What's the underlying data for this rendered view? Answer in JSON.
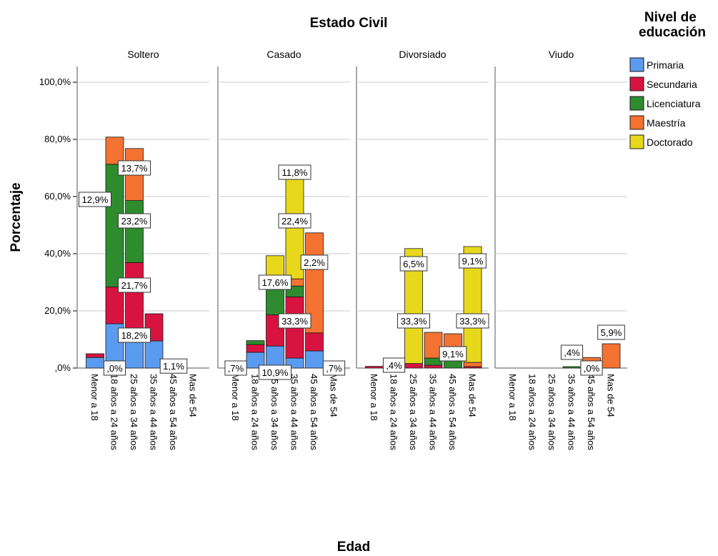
{
  "chart_data": {
    "type": "bar",
    "stacked": true,
    "panel_title": "Estado Civil",
    "xlabel": "Edad",
    "ylabel": "Porcentaje",
    "y_ticks": [
      ",0%",
      "20,0%",
      "40,0%",
      "60,0%",
      "80,0%",
      "100,0%"
    ],
    "ylim": [
      0,
      100
    ],
    "grid": true,
    "legend_title": "Nivel de educación",
    "legend_placement": "right",
    "categories": [
      "Menor a 18",
      "18 años a 24 años",
      "25 años a 34 años",
      "35 años a 44 años",
      "45 años a 54 años",
      "Mas de 54"
    ],
    "series": [
      {
        "name": "Primaria",
        "color": "#5b9bef"
      },
      {
        "name": "Secundaria",
        "color": "#d8133f"
      },
      {
        "name": "Licenciatura",
        "color": "#2e8b2e"
      },
      {
        "name": "Maestría",
        "color": "#f47232"
      },
      {
        "name": "Doctorado",
        "color": "#e8d81c"
      }
    ],
    "panels": [
      {
        "name": "Soltero",
        "stacks": [
          [
            3.7,
            1.3,
            0,
            0,
            0
          ],
          [
            15.5,
            12.9,
            42.9,
            9.5,
            0
          ],
          [
            13.7,
            23.2,
            21.7,
            18.2,
            0
          ],
          [
            9.5,
            9.5,
            0,
            0,
            0
          ],
          [
            1.1,
            0,
            0,
            0,
            0
          ],
          [
            0,
            0,
            0,
            0,
            0
          ]
        ],
        "labels": [
          {
            "text": "13,7%",
            "cat": 2,
            "y": 70
          },
          {
            "text": "12,9%",
            "cat": 0,
            "y": 59
          },
          {
            "text": "23,2%",
            "cat": 2,
            "y": 51.5
          },
          {
            "text": "21,7%",
            "cat": 2,
            "y": 29
          },
          {
            "text": "18,2%",
            "cat": 2,
            "y": 11.5
          },
          {
            "text": ",0%",
            "cat": 1,
            "y": 0
          },
          {
            "text": "1,1%",
            "cat": 4,
            "y": 0.7
          }
        ]
      },
      {
        "name": "Casado",
        "stacks": [
          [
            0,
            0,
            0,
            0,
            0
          ],
          [
            5.5,
            2.7,
            1.4,
            0,
            0
          ],
          [
            7.7,
            10.9,
            10.9,
            0.7,
            9.1
          ],
          [
            3.5,
            21.4,
            3.8,
            2.5,
            35
          ],
          [
            6,
            6.3,
            0,
            35,
            0
          ],
          [
            0,
            0,
            0,
            0,
            0
          ]
        ],
        "labels": [
          {
            "text": "11,8%",
            "cat": 3,
            "y": 68.5
          },
          {
            "text": "22,4%",
            "cat": 3,
            "y": 51.5
          },
          {
            "text": "2,2%",
            "cat": 4,
            "y": 37
          },
          {
            "text": "17,6%",
            "cat": 2,
            "y": 30
          },
          {
            "text": "33,3%",
            "cat": 3,
            "y": 16.5
          },
          {
            "text": "10,9%",
            "cat": 2,
            "y": -1.5
          },
          {
            "text": ",7%",
            "cat": 0,
            "y": 0
          },
          {
            "text": ",7%",
            "cat": 5,
            "y": 0
          }
        ]
      },
      {
        "name": "Divorsiado",
        "stacks": [
          [
            0,
            0.6,
            0,
            0,
            0
          ],
          [
            0,
            0,
            0,
            0,
            0
          ],
          [
            0,
            1.6,
            0,
            0,
            40.2
          ],
          [
            0,
            1,
            2.5,
            9,
            0
          ],
          [
            0,
            0,
            3,
            9,
            0
          ],
          [
            0,
            0.5,
            0,
            1.5,
            40.5
          ]
        ],
        "labels": [
          {
            "text": ",4%",
            "cat": 1,
            "y": 1
          },
          {
            "text": "6,5%",
            "cat": 2,
            "y": 36.5
          },
          {
            "text": "9,1%",
            "cat": 5,
            "y": 37.5
          },
          {
            "text": "33,3%",
            "cat": 2,
            "y": 16.5
          },
          {
            "text": "33,3%",
            "cat": 5,
            "y": 16.5
          },
          {
            "text": "9,1%",
            "cat": 4,
            "y": 5
          }
        ]
      },
      {
        "name": "Viudo",
        "stacks": [
          [
            0,
            0,
            0,
            0,
            0
          ],
          [
            0,
            0,
            0,
            0,
            0
          ],
          [
            0,
            0,
            0,
            0,
            0
          ],
          [
            0,
            0,
            0.5,
            0,
            0
          ],
          [
            0.5,
            0,
            0.5,
            2.7,
            0
          ],
          [
            0,
            0,
            0,
            8.5,
            0
          ]
        ],
        "labels": [
          {
            "text": ",4%",
            "cat": 3,
            "y": 5.5
          },
          {
            "text": ",0%",
            "cat": 4,
            "y": 0
          },
          {
            "text": "5,9%",
            "cat": 5,
            "y": 12.5
          }
        ]
      }
    ]
  }
}
